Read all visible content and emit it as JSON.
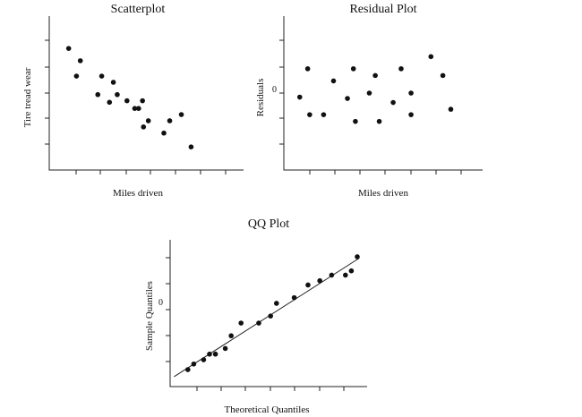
{
  "chart_data": [
    {
      "type": "scatter",
      "title": "Scatterplot",
      "xlabel": "Miles driven",
      "ylabel": "Tire tread wear",
      "yticks_labels": [],
      "xlim": [
        0,
        10
      ],
      "ylim": [
        0,
        5
      ],
      "points": [
        [
          1.0,
          3.95
        ],
        [
          1.4,
          3.05
        ],
        [
          1.6,
          3.55
        ],
        [
          2.5,
          2.45
        ],
        [
          2.7,
          3.05
        ],
        [
          3.1,
          2.2
        ],
        [
          3.3,
          2.85
        ],
        [
          3.5,
          2.45
        ],
        [
          4.0,
          2.25
        ],
        [
          4.4,
          2.0
        ],
        [
          4.6,
          2.0
        ],
        [
          4.8,
          2.25
        ],
        [
          4.85,
          1.4
        ],
        [
          5.1,
          1.6
        ],
        [
          5.9,
          1.2
        ],
        [
          6.2,
          1.6
        ],
        [
          6.8,
          1.8
        ],
        [
          7.3,
          0.75
        ]
      ]
    },
    {
      "type": "scatter",
      "title": "Residual Plot",
      "xlabel": "Miles driven",
      "ylabel": "Residuals",
      "ytick_labels": [
        {
          "value": 0,
          "label": "0"
        }
      ],
      "xlim": [
        0,
        10
      ],
      "ylim": [
        -3,
        2.7
      ],
      "points": [
        [
          0.8,
          -0.3
        ],
        [
          1.2,
          0.75
        ],
        [
          1.3,
          -0.95
        ],
        [
          2.0,
          -0.95
        ],
        [
          2.5,
          0.3
        ],
        [
          3.2,
          -0.35
        ],
        [
          3.5,
          0.75
        ],
        [
          3.6,
          -1.2
        ],
        [
          4.3,
          -0.15
        ],
        [
          4.6,
          0.5
        ],
        [
          4.8,
          -1.2
        ],
        [
          5.5,
          -0.5
        ],
        [
          5.9,
          0.75
        ],
        [
          6.4,
          -0.15
        ],
        [
          6.4,
          -0.95
        ],
        [
          7.4,
          1.2
        ],
        [
          8.0,
          0.5
        ],
        [
          8.4,
          -0.75
        ]
      ]
    },
    {
      "type": "scatter",
      "title": "QQ Plot",
      "xlabel": "Theoretical Quantiles",
      "ylabel": "Sample Quantiles",
      "ytick_labels": [
        {
          "value": 0,
          "label": "0"
        }
      ],
      "xlim": [
        -2.5,
        2.5
      ],
      "ylim": [
        -3,
        2.2
      ],
      "reference_line": [
        [
          -2.4,
          -2.65
        ],
        [
          2.3,
          1.55
        ]
      ],
      "points": [
        [
          -2.05,
          -2.4
        ],
        [
          -1.9,
          -2.2
        ],
        [
          -1.65,
          -2.05
        ],
        [
          -1.5,
          -1.85
        ],
        [
          -1.35,
          -1.85
        ],
        [
          -1.1,
          -1.65
        ],
        [
          -0.95,
          -1.2
        ],
        [
          -0.7,
          -0.75
        ],
        [
          -0.25,
          -0.75
        ],
        [
          0.05,
          -0.5
        ],
        [
          0.2,
          -0.05
        ],
        [
          0.65,
          0.15
        ],
        [
          1.0,
          0.6
        ],
        [
          1.3,
          0.75
        ],
        [
          1.6,
          0.95
        ],
        [
          1.95,
          0.95
        ],
        [
          2.1,
          1.1
        ],
        [
          2.25,
          1.6
        ]
      ]
    }
  ]
}
